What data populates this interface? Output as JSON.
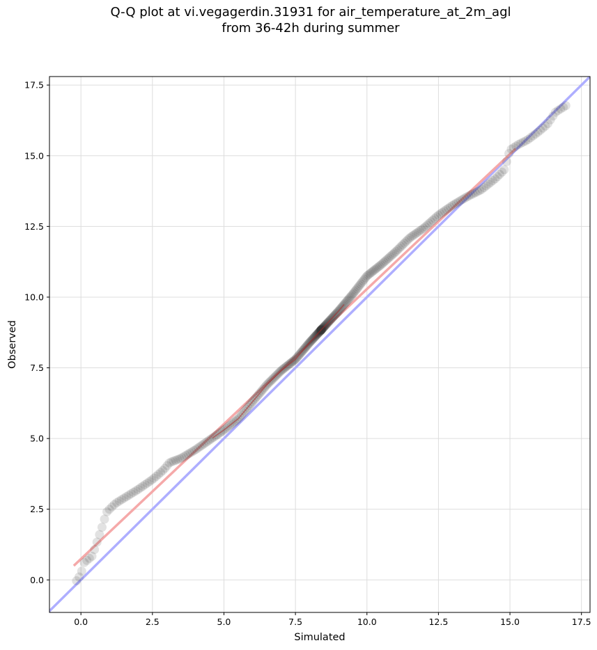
{
  "chart_data": {
    "type": "scatter",
    "title": [
      "Q-Q plot at vi.vegagerdin.31931 for air_temperature_at_2m_agl",
      "from 36-42h during summer"
    ],
    "xlabel": "Simulated",
    "ylabel": "Observed",
    "xlim": [
      -1.1,
      17.8
    ],
    "ylim": [
      -1.15,
      17.8
    ],
    "xticks": [
      0.0,
      2.5,
      5.0,
      7.5,
      10.0,
      12.5,
      15.0,
      17.5
    ],
    "yticks": [
      0.0,
      2.5,
      5.0,
      7.5,
      10.0,
      12.5,
      15.0,
      17.5
    ],
    "xtick_labels": [
      "0.0",
      "2.5",
      "5.0",
      "7.5",
      "10.0",
      "12.5",
      "15.0",
      "17.5"
    ],
    "ytick_labels": [
      "0.0",
      "2.5",
      "5.0",
      "7.5",
      "10.0",
      "12.5",
      "15.0",
      "17.5"
    ],
    "grid": true,
    "quantile_curve": {
      "x": [
        -0.2,
        0.0,
        0.1,
        0.4,
        0.55,
        0.75,
        0.9,
        1.2,
        1.6,
        2.0,
        2.5,
        2.9,
        3.1,
        3.5,
        4.0,
        4.5,
        5.0,
        5.5,
        6.0,
        6.5,
        7.0,
        7.5,
        8.0,
        8.5,
        9.0,
        9.5,
        10.0,
        10.5,
        11.0,
        11.5,
        12.0,
        12.5,
        13.0,
        13.5,
        14.0,
        14.5,
        14.8,
        15.0,
        15.3,
        15.6,
        16.0,
        16.3,
        16.6,
        17.0
      ],
      "y": [
        -0.1,
        0.2,
        0.6,
        0.85,
        1.3,
        1.9,
        2.4,
        2.7,
        2.95,
        3.2,
        3.55,
        3.9,
        4.15,
        4.3,
        4.6,
        4.95,
        5.3,
        5.7,
        6.3,
        6.9,
        7.4,
        7.8,
        8.4,
        8.95,
        9.5,
        10.1,
        10.75,
        11.15,
        11.6,
        12.1,
        12.45,
        12.9,
        13.25,
        13.55,
        13.8,
        14.2,
        14.5,
        15.2,
        15.4,
        15.55,
        15.85,
        16.1,
        16.55,
        16.8
      ]
    },
    "identity_line": {
      "color": "#aaaaff",
      "label": ""
    },
    "fit_line": {
      "x": [
        -0.25,
        15.2
      ],
      "y": [
        0.5,
        15.25
      ],
      "color": "#f4a4a4"
    },
    "marker_color": "#333333"
  }
}
